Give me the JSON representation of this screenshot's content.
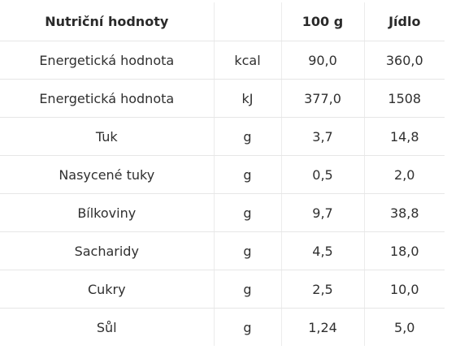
{
  "table": {
    "headers": {
      "name": "Nutriční hodnoty",
      "unit": "",
      "per100": "100 g",
      "meal": "Jídlo"
    },
    "rows": [
      {
        "name": "Energetická hodnota",
        "unit": "kcal",
        "per100": "90,0",
        "meal": "360,0"
      },
      {
        "name": "Energetická hodnota",
        "unit": "kJ",
        "per100": "377,0",
        "meal": "1508"
      },
      {
        "name": "Tuk",
        "unit": "g",
        "per100": "3,7",
        "meal": "14,8"
      },
      {
        "name": "Nasycené tuky",
        "unit": "g",
        "per100": "0,5",
        "meal": "2,0"
      },
      {
        "name": "Bílkoviny",
        "unit": "g",
        "per100": "9,7",
        "meal": "38,8"
      },
      {
        "name": "Sacharidy",
        "unit": "g",
        "per100": "4,5",
        "meal": "18,0"
      },
      {
        "name": "Cukry",
        "unit": "g",
        "per100": "2,5",
        "meal": "10,0"
      },
      {
        "name": "Sůl",
        "unit": "g",
        "per100": "1,24",
        "meal": "5,0"
      }
    ]
  }
}
